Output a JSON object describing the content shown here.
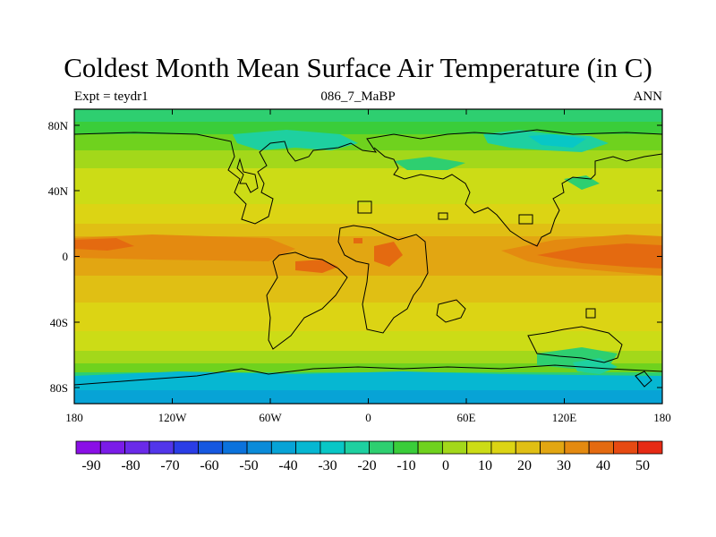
{
  "title": "Coldest Month Mean Surface Air Temperature (in C)",
  "subtitle_left": "Expt = teydr1",
  "subtitle_center": "086_7_MaBP",
  "subtitle_right": "ANN",
  "x_ticks": [
    "180",
    "120W",
    "60W",
    "0",
    "60E",
    "120E",
    "180"
  ],
  "y_ticks": [
    "80N",
    "40N",
    "0",
    "40S",
    "80S"
  ],
  "colorbar": {
    "labels": [
      "-90",
      "-80",
      "-70",
      "-60",
      "-50",
      "-40",
      "-30",
      "-20",
      "-10",
      "0",
      "10",
      "20",
      "30",
      "40",
      "50"
    ],
    "colors": [
      "#8a0fe6",
      "#7a1ce8",
      "#6a2ae9",
      "#5236ea",
      "#2a3de6",
      "#1658e0",
      "#0b72dc",
      "#0b8bd9",
      "#07a3d6",
      "#06b7d2",
      "#08c7c6",
      "#1ed0a0",
      "#2ecf70",
      "#3acd3a",
      "#6fd21e",
      "#a3d81a",
      "#ccdc16",
      "#dcd414",
      "#e0bf14",
      "#e2a612",
      "#e48a10",
      "#e46a10",
      "#e64a12",
      "#e62a14"
    ]
  },
  "map": {
    "lon_range": [
      -180,
      180
    ],
    "lat_range": [
      -90,
      90
    ],
    "variable": "Coldest Month Mean Surface Air Temperature",
    "units": "C"
  }
}
